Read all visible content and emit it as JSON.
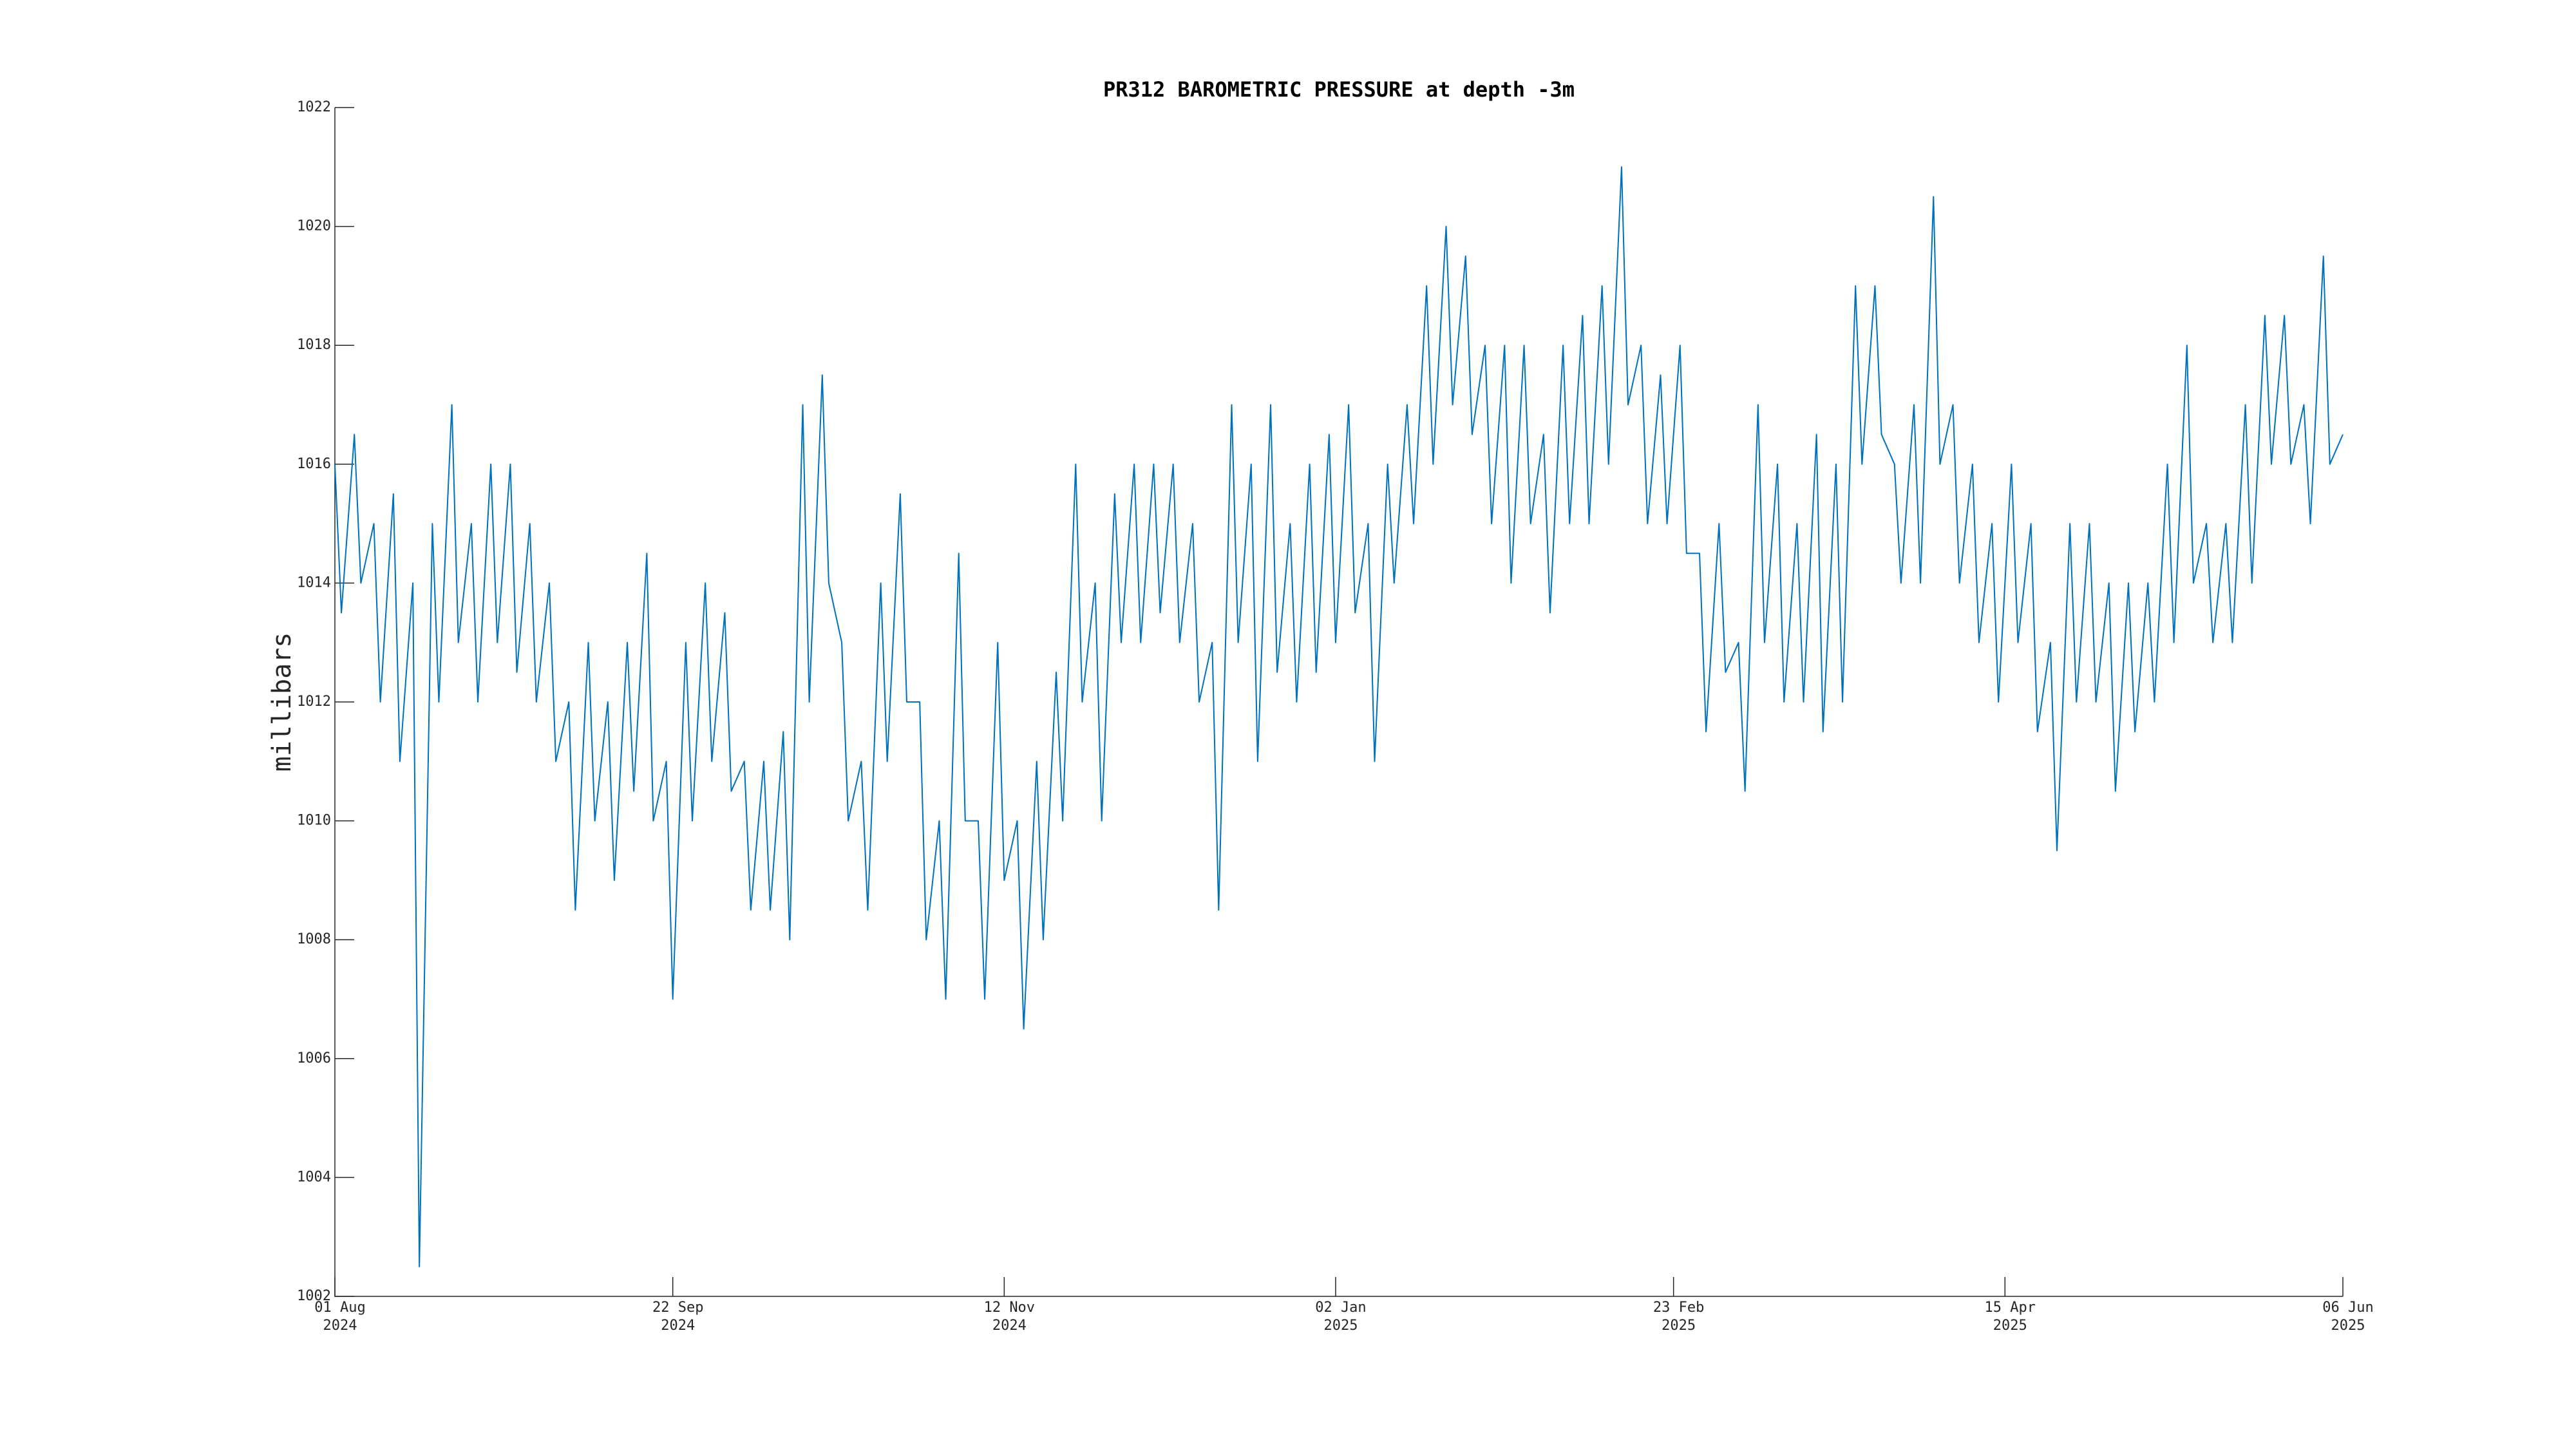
{
  "chart_data": {
    "type": "line",
    "title": "PR312 BAROMETRIC PRESSURE at depth -3m",
    "ylabel": "millibars",
    "color": "#0072bd",
    "xlim": [
      "2024-08-01",
      "2025-06-06"
    ],
    "xticks": [
      {
        "value": "2024-08-01",
        "label": [
          "01 Aug",
          "2024"
        ]
      },
      {
        "value": "2024-09-22",
        "label": [
          "22 Sep",
          "2024"
        ]
      },
      {
        "value": "2024-11-12",
        "label": [
          "12 Nov",
          "2024"
        ]
      },
      {
        "value": "2025-01-02",
        "label": [
          "02 Jan",
          "2025"
        ]
      },
      {
        "value": "2025-02-23",
        "label": [
          "23 Feb",
          "2025"
        ]
      },
      {
        "value": "2025-04-15",
        "label": [
          "15 Apr",
          "2025"
        ]
      },
      {
        "value": "2025-06-06",
        "label": [
          "06 Jun",
          "2025"
        ]
      }
    ],
    "ylim": [
      1002,
      1022
    ],
    "yticks": [
      1002,
      1004,
      1006,
      1008,
      1010,
      1012,
      1014,
      1016,
      1018,
      1020,
      1022
    ],
    "x": [
      "2024-08-01",
      "2024-08-02",
      "2024-08-04",
      "2024-08-05",
      "2024-08-07",
      "2024-08-08",
      "2024-08-10",
      "2024-08-11",
      "2024-08-13",
      "2024-08-14",
      "2024-08-16",
      "2024-08-17",
      "2024-08-19",
      "2024-08-20",
      "2024-08-22",
      "2024-08-23",
      "2024-08-25",
      "2024-08-26",
      "2024-08-28",
      "2024-08-29",
      "2024-08-31",
      "2024-09-01",
      "2024-09-03",
      "2024-09-04",
      "2024-09-06",
      "2024-09-07",
      "2024-09-09",
      "2024-09-10",
      "2024-09-12",
      "2024-09-13",
      "2024-09-15",
      "2024-09-16",
      "2024-09-18",
      "2024-09-19",
      "2024-09-21",
      "2024-09-22",
      "2024-09-24",
      "2024-09-25",
      "2024-09-27",
      "2024-09-28",
      "2024-09-30",
      "2024-10-01",
      "2024-10-03",
      "2024-10-04",
      "2024-10-06",
      "2024-10-07",
      "2024-10-09",
      "2024-10-10",
      "2024-10-12",
      "2024-10-13",
      "2024-10-15",
      "2024-10-16",
      "2024-10-18",
      "2024-10-19",
      "2024-10-21",
      "2024-10-22",
      "2024-10-24",
      "2024-10-25",
      "2024-10-27",
      "2024-10-28",
      "2024-10-30",
      "2024-10-31",
      "2024-11-02",
      "2024-11-03",
      "2024-11-05",
      "2024-11-06",
      "2024-11-08",
      "2024-11-09",
      "2024-11-11",
      "2024-11-12",
      "2024-11-14",
      "2024-11-15",
      "2024-11-17",
      "2024-11-18",
      "2024-11-20",
      "2024-11-21",
      "2024-11-23",
      "2024-11-24",
      "2024-11-26",
      "2024-11-27",
      "2024-11-29",
      "2024-11-30",
      "2024-12-02",
      "2024-12-03",
      "2024-12-05",
      "2024-12-06",
      "2024-12-08",
      "2024-12-09",
      "2024-12-11",
      "2024-12-12",
      "2024-12-14",
      "2024-12-15",
      "2024-12-17",
      "2024-12-18",
      "2024-12-20",
      "2024-12-21",
      "2024-12-23",
      "2024-12-24",
      "2024-12-26",
      "2024-12-27",
      "2024-12-29",
      "2024-12-30",
      "2025-01-01",
      "2025-01-02",
      "2025-01-04",
      "2025-01-05",
      "2025-01-07",
      "2025-01-08",
      "2025-01-10",
      "2025-01-11",
      "2025-01-13",
      "2025-01-14",
      "2025-01-16",
      "2025-01-17",
      "2025-01-19",
      "2025-01-20",
      "2025-01-22",
      "2025-01-23",
      "2025-01-25",
      "2025-01-26",
      "2025-01-28",
      "2025-01-29",
      "2025-01-31",
      "2025-02-01",
      "2025-02-03",
      "2025-02-04",
      "2025-02-06",
      "2025-02-07",
      "2025-02-09",
      "2025-02-10",
      "2025-02-12",
      "2025-02-13",
      "2025-02-15",
      "2025-02-16",
      "2025-02-18",
      "2025-02-19",
      "2025-02-21",
      "2025-02-22",
      "2025-02-24",
      "2025-02-25",
      "2025-02-27",
      "2025-02-28",
      "2025-03-02",
      "2025-03-03",
      "2025-03-05",
      "2025-03-06",
      "2025-03-08",
      "2025-03-09",
      "2025-03-11",
      "2025-03-12",
      "2025-03-14",
      "2025-03-15",
      "2025-03-17",
      "2025-03-18",
      "2025-03-20",
      "2025-03-21",
      "2025-03-23",
      "2025-03-24",
      "2025-03-26",
      "2025-03-27",
      "2025-03-29",
      "2025-03-30",
      "2025-04-01",
      "2025-04-02",
      "2025-04-04",
      "2025-04-05",
      "2025-04-07",
      "2025-04-08",
      "2025-04-10",
      "2025-04-11",
      "2025-04-13",
      "2025-04-14",
      "2025-04-16",
      "2025-04-17",
      "2025-04-19",
      "2025-04-20",
      "2025-04-22",
      "2025-04-23",
      "2025-04-25",
      "2025-04-26",
      "2025-04-28",
      "2025-04-29",
      "2025-05-01",
      "2025-05-02",
      "2025-05-04",
      "2025-05-05",
      "2025-05-07",
      "2025-05-08",
      "2025-05-10",
      "2025-05-11",
      "2025-05-13",
      "2025-05-14",
      "2025-05-16",
      "2025-05-17",
      "2025-05-19",
      "2025-05-20",
      "2025-05-22",
      "2025-05-23",
      "2025-05-25",
      "2025-05-26",
      "2025-05-28",
      "2025-05-29",
      "2025-05-31",
      "2025-06-01",
      "2025-06-03",
      "2025-06-04",
      "2025-06-06"
    ],
    "values": [
      1016,
      1013.5,
      1016.5,
      1014,
      1015,
      1012,
      1015.5,
      1011,
      1014,
      1002.5,
      1015,
      1012,
      1017,
      1013,
      1015,
      1012,
      1016,
      1013,
      1016,
      1012.5,
      1015,
      1012,
      1014,
      1011,
      1012,
      1008.5,
      1013,
      1010,
      1012,
      1009,
      1013,
      1010.5,
      1014.5,
      1010,
      1011,
      1007,
      1013,
      1010,
      1014,
      1011,
      1013.5,
      1010.5,
      1011,
      1008.5,
      1011,
      1008.5,
      1011.5,
      1008,
      1017,
      1012,
      1017.5,
      1014,
      1013,
      1010,
      1011,
      1008.5,
      1014,
      1011,
      1015.5,
      1012,
      1012,
      1008,
      1010,
      1007,
      1014.5,
      1010,
      1010,
      1007,
      1013,
      1009,
      1010,
      1006.5,
      1011,
      1008,
      1012.5,
      1010,
      1016,
      1012,
      1014,
      1010,
      1015.5,
      1013,
      1016,
      1013,
      1016,
      1013.5,
      1016,
      1013,
      1015,
      1012,
      1013,
      1008.5,
      1017,
      1013,
      1016,
      1011,
      1017,
      1012.5,
      1015,
      1012,
      1016,
      1012.5,
      1016.5,
      1013,
      1017,
      1013.5,
      1015,
      1011,
      1016,
      1014,
      1017,
      1015,
      1019,
      1016,
      1020,
      1017,
      1019.5,
      1016.5,
      1018,
      1015,
      1018,
      1014,
      1018,
      1015,
      1016.5,
      1013.5,
      1018,
      1015,
      1018.5,
      1015,
      1019,
      1016,
      1021,
      1017,
      1018,
      1015,
      1017.5,
      1015,
      1018,
      1014.5,
      1014.5,
      1011.5,
      1015,
      1012.5,
      1013,
      1010.5,
      1017,
      1013,
      1016,
      1012,
      1015,
      1012,
      1016.5,
      1011.5,
      1016,
      1012,
      1019,
      1016,
      1019,
      1016.5,
      1016,
      1014,
      1017,
      1014,
      1020.5,
      1016,
      1017,
      1014,
      1016,
      1013,
      1015,
      1012,
      1016,
      1013,
      1015,
      1011.5,
      1013,
      1009.5,
      1015,
      1012,
      1015,
      1012,
      1014,
      1010.5,
      1014,
      1011.5,
      1014,
      1012,
      1016,
      1013,
      1018,
      1014,
      1015,
      1013,
      1015,
      1013,
      1017,
      1014,
      1018.5,
      1016,
      1018.5,
      1016,
      1017,
      1015,
      1019.5,
      1016,
      1016.5
    ]
  }
}
